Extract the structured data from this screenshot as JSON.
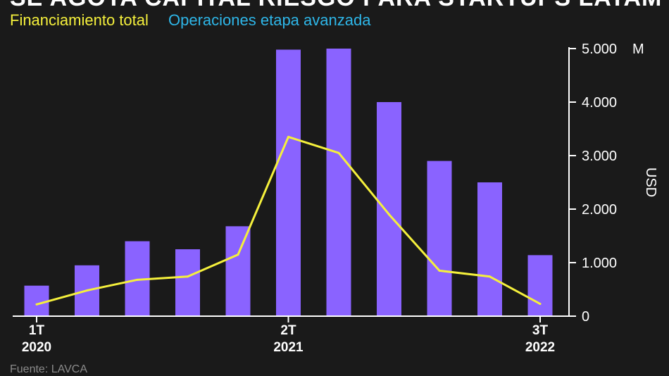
{
  "chart_data": {
    "type": "bar",
    "title": "SE AGOTA CAPITAL RIESGO PARA STARTUPS LATAM",
    "series": [
      {
        "name": "Financiamiento total",
        "type": "line",
        "color": "#f5f03c",
        "values": [
          220,
          480,
          680,
          740,
          1150,
          3350,
          3050,
          1900,
          850,
          740,
          230
        ]
      },
      {
        "name": "Operaciones etapa avanzada",
        "type": "bar",
        "color": "#8a63ff",
        "legend_color": "#2eb6e8",
        "values": [
          570,
          950,
          1400,
          1250,
          1680,
          4980,
          5000,
          4000,
          2900,
          2500,
          1140
        ]
      }
    ],
    "x_tick_labels": [
      {
        "index": 0,
        "top": "1T",
        "bottom": "2020"
      },
      {
        "index": 5,
        "top": "2T",
        "bottom": "2021"
      },
      {
        "index": 10,
        "top": "3T",
        "bottom": "2022"
      }
    ],
    "y_ticks": [
      0,
      1000,
      2000,
      3000,
      4000,
      5000
    ],
    "y_tick_labels": [
      "0",
      "1.000",
      "2.000",
      "3.000",
      "4.000",
      "5.000"
    ],
    "y_unit": "M",
    "ylabel": "USD",
    "ylim": [
      0,
      5000
    ],
    "grid": false,
    "legend_position": "top-left",
    "source": "Fuente: LAVCA"
  }
}
